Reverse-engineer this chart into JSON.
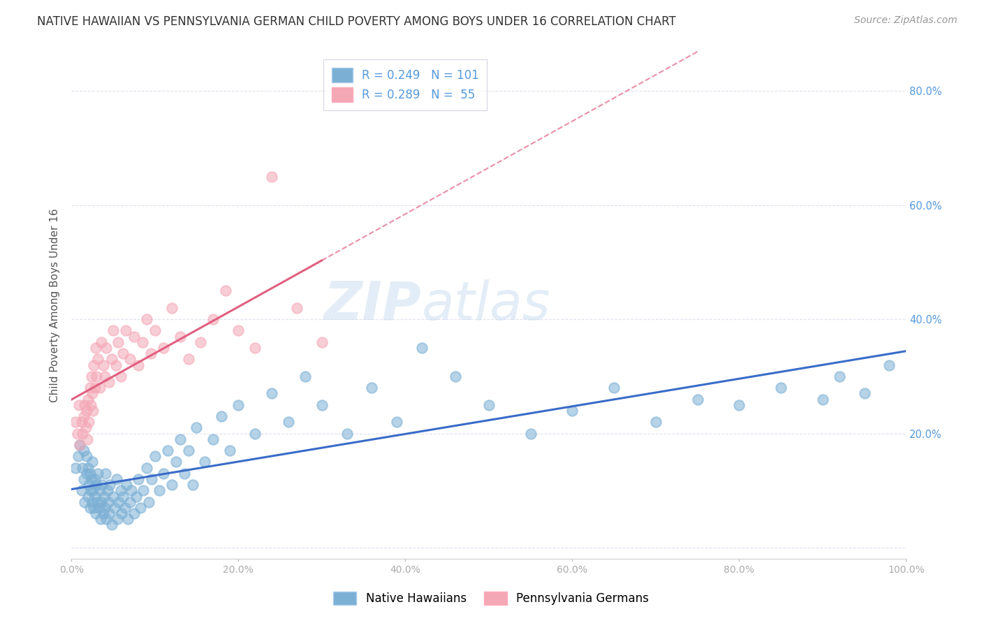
{
  "title": "NATIVE HAWAIIAN VS PENNSYLVANIA GERMAN CHILD POVERTY AMONG BOYS UNDER 16 CORRELATION CHART",
  "source": "Source: ZipAtlas.com",
  "ylabel": "Child Poverty Among Boys Under 16",
  "xlim": [
    0,
    1.0
  ],
  "ylim": [
    -0.02,
    0.87
  ],
  "yticks": [
    0.0,
    0.2,
    0.4,
    0.6,
    0.8
  ],
  "ytick_labels": [
    "",
    "20.0%",
    "40.0%",
    "60.0%",
    "80.0%"
  ],
  "xticks": [
    0.0,
    0.2,
    0.4,
    0.6,
    0.8,
    1.0
  ],
  "xtick_labels": [
    "0.0%",
    "20.0%",
    "40.0%",
    "60.0%",
    "80.0%",
    "100.0%"
  ],
  "legend_r1": "R = 0.249",
  "legend_n1": "N = 101",
  "legend_r2": "R = 0.289",
  "legend_n2": "N =  55",
  "color_blue": "#7BAFD4",
  "color_pink": "#F4A7B5",
  "color_blue_line": "#3A6CC8",
  "color_pink_line": "#E06080",
  "watermark_color": "#C8DCF0",
  "blue_scatter_x": [
    0.005,
    0.008,
    0.01,
    0.012,
    0.013,
    0.015,
    0.015,
    0.016,
    0.018,
    0.018,
    0.02,
    0.02,
    0.021,
    0.022,
    0.022,
    0.023,
    0.024,
    0.025,
    0.025,
    0.026,
    0.027,
    0.028,
    0.028,
    0.029,
    0.03,
    0.031,
    0.032,
    0.033,
    0.034,
    0.035,
    0.036,
    0.037,
    0.038,
    0.039,
    0.04,
    0.041,
    0.042,
    0.043,
    0.044,
    0.045,
    0.046,
    0.048,
    0.05,
    0.052,
    0.054,
    0.055,
    0.057,
    0.059,
    0.06,
    0.062,
    0.064,
    0.066,
    0.068,
    0.07,
    0.072,
    0.075,
    0.078,
    0.08,
    0.083,
    0.086,
    0.09,
    0.093,
    0.096,
    0.1,
    0.105,
    0.11,
    0.115,
    0.12,
    0.125,
    0.13,
    0.135,
    0.14,
    0.145,
    0.15,
    0.16,
    0.17,
    0.18,
    0.19,
    0.2,
    0.22,
    0.24,
    0.26,
    0.28,
    0.3,
    0.33,
    0.36,
    0.39,
    0.42,
    0.46,
    0.5,
    0.55,
    0.6,
    0.65,
    0.7,
    0.75,
    0.8,
    0.85,
    0.9,
    0.92,
    0.95,
    0.98
  ],
  "blue_scatter_y": [
    0.14,
    0.16,
    0.18,
    0.1,
    0.14,
    0.12,
    0.17,
    0.08,
    0.13,
    0.16,
    0.09,
    0.14,
    0.11,
    0.07,
    0.13,
    0.1,
    0.12,
    0.08,
    0.15,
    0.1,
    0.07,
    0.12,
    0.09,
    0.06,
    0.11,
    0.08,
    0.13,
    0.07,
    0.1,
    0.05,
    0.08,
    0.11,
    0.06,
    0.09,
    0.07,
    0.13,
    0.05,
    0.1,
    0.08,
    0.06,
    0.11,
    0.04,
    0.09,
    0.07,
    0.12,
    0.05,
    0.08,
    0.1,
    0.06,
    0.09,
    0.07,
    0.11,
    0.05,
    0.08,
    0.1,
    0.06,
    0.09,
    0.12,
    0.07,
    0.1,
    0.14,
    0.08,
    0.12,
    0.16,
    0.1,
    0.13,
    0.17,
    0.11,
    0.15,
    0.19,
    0.13,
    0.17,
    0.11,
    0.21,
    0.15,
    0.19,
    0.23,
    0.17,
    0.25,
    0.2,
    0.27,
    0.22,
    0.3,
    0.25,
    0.2,
    0.28,
    0.22,
    0.35,
    0.3,
    0.25,
    0.2,
    0.24,
    0.28,
    0.22,
    0.26,
    0.25,
    0.28,
    0.26,
    0.3,
    0.27,
    0.32
  ],
  "pink_scatter_x": [
    0.005,
    0.007,
    0.009,
    0.01,
    0.012,
    0.013,
    0.015,
    0.016,
    0.017,
    0.018,
    0.019,
    0.02,
    0.021,
    0.022,
    0.023,
    0.024,
    0.025,
    0.026,
    0.027,
    0.028,
    0.029,
    0.03,
    0.032,
    0.034,
    0.036,
    0.038,
    0.04,
    0.042,
    0.045,
    0.048,
    0.05,
    0.053,
    0.056,
    0.059,
    0.062,
    0.065,
    0.07,
    0.075,
    0.08,
    0.085,
    0.09,
    0.095,
    0.1,
    0.11,
    0.12,
    0.13,
    0.14,
    0.155,
    0.17,
    0.185,
    0.2,
    0.22,
    0.24,
    0.27,
    0.3
  ],
  "pink_scatter_y": [
    0.22,
    0.2,
    0.25,
    0.18,
    0.22,
    0.2,
    0.23,
    0.25,
    0.21,
    0.24,
    0.19,
    0.26,
    0.22,
    0.28,
    0.25,
    0.3,
    0.27,
    0.24,
    0.32,
    0.28,
    0.35,
    0.3,
    0.33,
    0.28,
    0.36,
    0.32,
    0.3,
    0.35,
    0.29,
    0.33,
    0.38,
    0.32,
    0.36,
    0.3,
    0.34,
    0.38,
    0.33,
    0.37,
    0.32,
    0.36,
    0.4,
    0.34,
    0.38,
    0.35,
    0.42,
    0.37,
    0.33,
    0.36,
    0.4,
    0.45,
    0.38,
    0.35,
    0.65,
    0.42,
    0.36
  ],
  "background_color": "#FFFFFF",
  "grid_color": "#E0E0EE"
}
